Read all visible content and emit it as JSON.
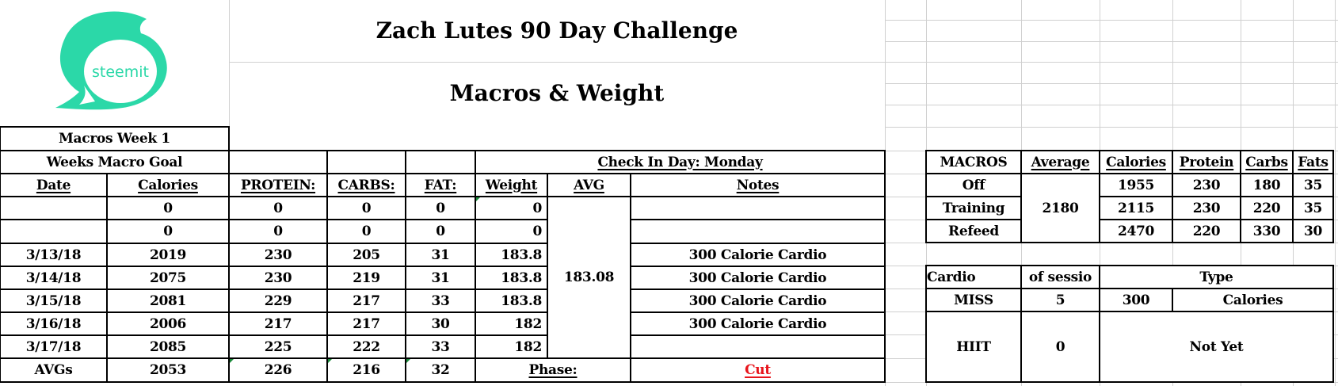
{
  "title": "Zach Lutes 90 Day Challenge",
  "subtitle": "Macros & Weight",
  "logo_text": "steemit",
  "colors": {
    "logo": "#2bd8a8",
    "phase_value": "#e8141b",
    "grid": "#d0d0d0"
  },
  "week_table": {
    "section_title": "Macros Week 1",
    "goal_label": "Weeks Macro Goal",
    "check_in": "Check In Day: Monday",
    "headers": [
      "Date",
      "Calories",
      "PROTEIN:",
      "CARBS:",
      "FAT:",
      "Weight",
      "AVG",
      "Notes"
    ],
    "rows": [
      {
        "date": "",
        "calories": "0",
        "protein": "0",
        "carbs": "0",
        "fat": "0",
        "weight": "0",
        "notes": ""
      },
      {
        "date": "",
        "calories": "0",
        "protein": "0",
        "carbs": "0",
        "fat": "0",
        "weight": "0",
        "notes": ""
      },
      {
        "date": "3/13/18",
        "calories": "2019",
        "protein": "230",
        "carbs": "205",
        "fat": "31",
        "weight": "183.8",
        "notes": "300 Calorie Cardio"
      },
      {
        "date": "3/14/18",
        "calories": "2075",
        "protein": "230",
        "carbs": "219",
        "fat": "31",
        "weight": "183.8",
        "notes": "300 Calorie Cardio"
      },
      {
        "date": "3/15/18",
        "calories": "2081",
        "protein": "229",
        "carbs": "217",
        "fat": "33",
        "weight": "183.8",
        "notes": "300 Calorie Cardio"
      },
      {
        "date": "3/16/18",
        "calories": "2006",
        "protein": "217",
        "carbs": "217",
        "fat": "30",
        "weight": "182",
        "notes": "300 Calorie Cardio"
      },
      {
        "date": "3/17/18",
        "calories": "2085",
        "protein": "225",
        "carbs": "222",
        "fat": "33",
        "weight": "182",
        "notes": ""
      }
    ],
    "weight_avg": "183.08",
    "averages": {
      "label": "AVGs",
      "calories": "2053",
      "protein": "226",
      "carbs": "216",
      "fat": "32"
    },
    "phase_label": "Phase:",
    "phase_value": "Cut"
  },
  "macros_table": {
    "headers": [
      "MACROS",
      "Average",
      "Calories",
      "Protein",
      "Carbs",
      "Fats"
    ],
    "average": "2180",
    "rows": [
      {
        "name": "Off",
        "calories": "1955",
        "protein": "230",
        "carbs": "180",
        "fats": "35"
      },
      {
        "name": "Training",
        "calories": "2115",
        "protein": "230",
        "carbs": "220",
        "fats": "35"
      },
      {
        "name": "Refeed",
        "calories": "2470",
        "protein": "220",
        "carbs": "330",
        "fats": "30"
      }
    ]
  },
  "cardio_table": {
    "headers": [
      "Cardio",
      "of sessio",
      "Type"
    ],
    "miss": {
      "name": "MISS",
      "sessions": "5",
      "amount": "300",
      "unit": "Calories"
    },
    "hiit": {
      "name": "HIIT",
      "sessions": "0",
      "type": "Not Yet"
    }
  }
}
